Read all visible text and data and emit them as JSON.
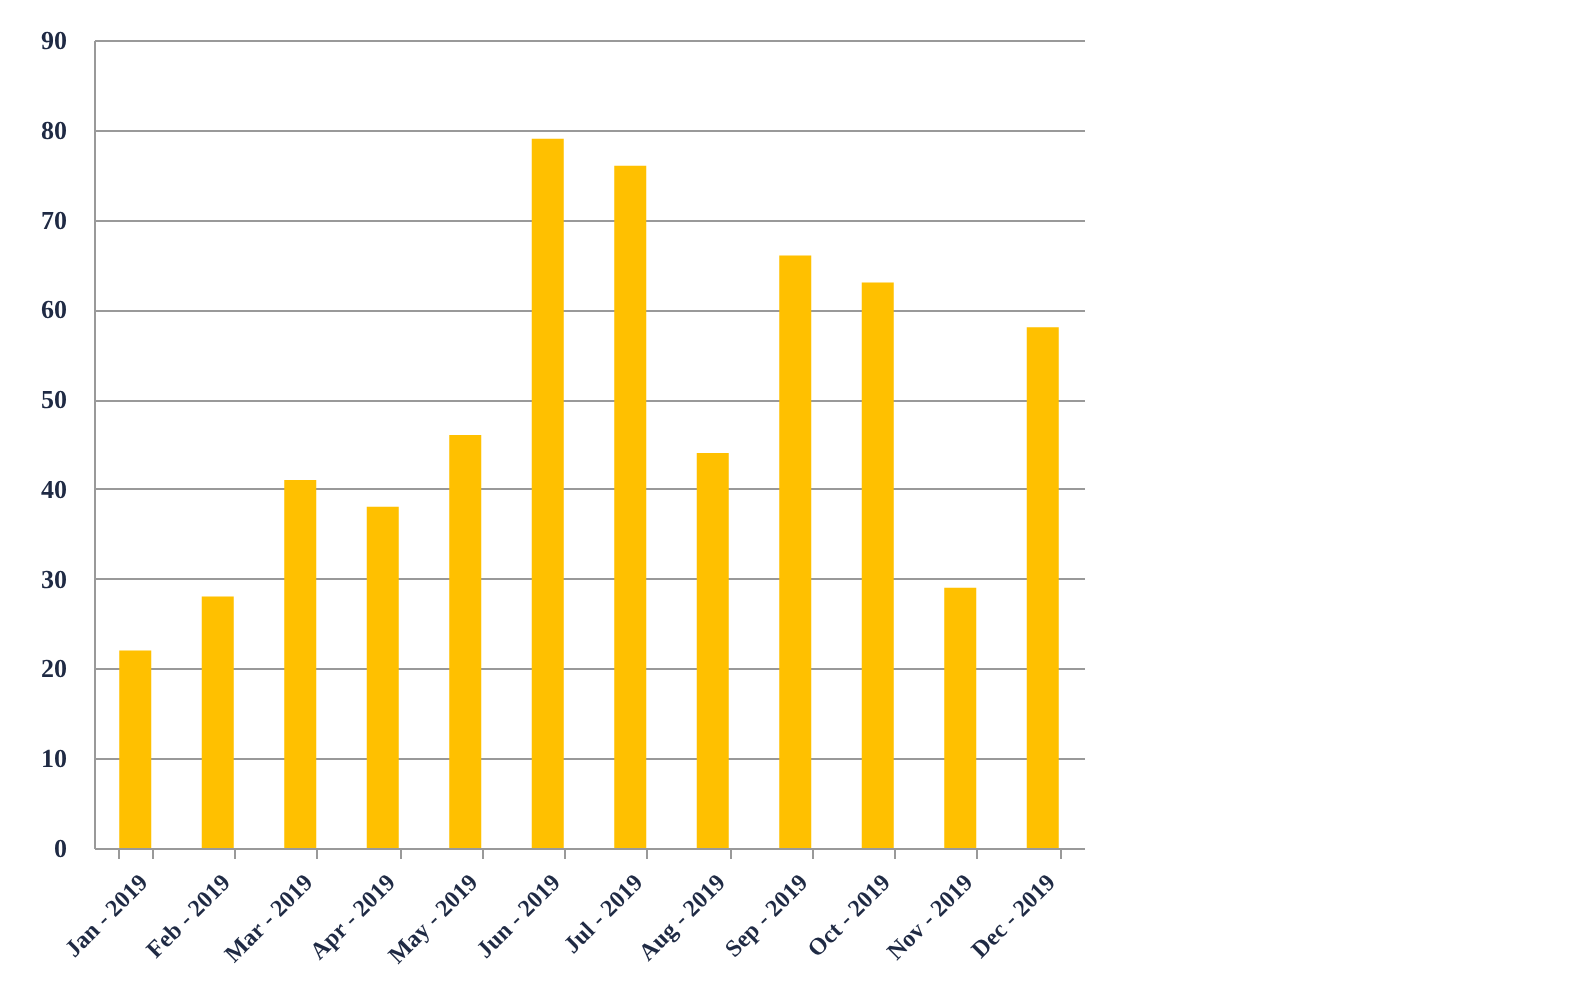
{
  "chart_data": {
    "type": "bar",
    "categories": [
      "Jan - 2019",
      "Feb - 2019",
      "Mar - 2019",
      "Apr - 2019",
      "May - 2019",
      "Jun - 2019",
      "Jul - 2019",
      "Aug - 2019",
      "Sep - 2019",
      "Oct - 2019",
      "Nov - 2019",
      "Dec - 2019"
    ],
    "series": [
      {
        "color": "#ffc000",
        "values": [
          22,
          28,
          41,
          38,
          46,
          79,
          76,
          44,
          66,
          63,
          29,
          58
        ]
      }
    ],
    "ylim": [
      0,
      90
    ],
    "yticks": [
      0,
      10,
      20,
      30,
      40,
      50,
      60,
      70,
      80,
      90
    ],
    "grid": "y"
  }
}
